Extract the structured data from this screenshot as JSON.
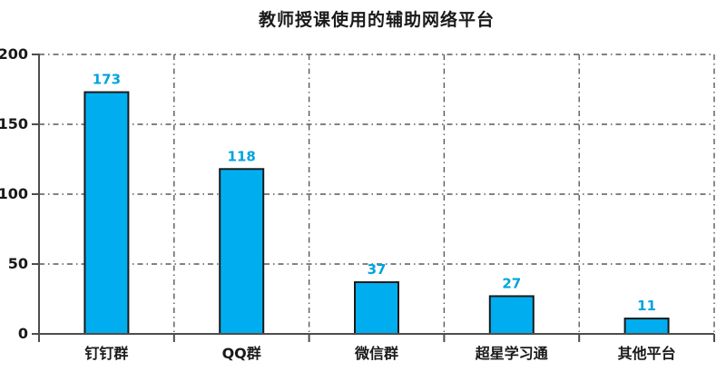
{
  "chart_data": {
    "type": "bar",
    "title": "教师授课使用的辅助网络平台",
    "categories": [
      "钉钉群",
      "QQ群",
      "微信群",
      "超星学习通",
      "其他平台"
    ],
    "values": [
      173,
      118,
      37,
      27,
      11
    ],
    "ylim": [
      0,
      200
    ],
    "yticks": [
      0,
      50,
      100,
      150,
      200
    ],
    "xlabel": "",
    "ylabel": "",
    "legend": "none",
    "grid": "dash-dot horizontal gridlines at y ticks and vertical gridlines at category boundaries",
    "bar_color": "#00AEEF",
    "bar_border_color": "#1A1A1A",
    "value_label_color": "#00A3E0",
    "axis_color": "#4D4D4D",
    "gridline_color": "#595959",
    "text_color": "#1A1A1A"
  }
}
